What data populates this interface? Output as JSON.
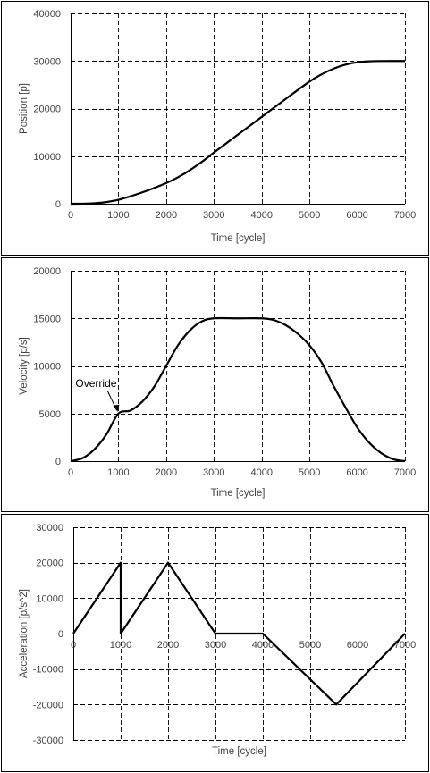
{
  "chart_data": [
    {
      "type": "line",
      "title": "",
      "xlabel": "Time [cycle]",
      "ylabel": "Position [p]",
      "xlim": [
        0,
        7000
      ],
      "ylim": [
        0,
        40000
      ],
      "x_ticks": [
        0,
        1000,
        2000,
        3000,
        4000,
        5000,
        6000,
        7000
      ],
      "y_ticks": [
        0,
        10000,
        20000,
        30000,
        40000
      ],
      "grid": true,
      "legend": "none",
      "series": [
        {
          "color": "#000000",
          "x": [
            0,
            250,
            500,
            750,
            1000,
            1250,
            1500,
            1750,
            2000,
            2250,
            2500,
            2750,
            3000,
            3500,
            4000,
            4500,
            5000,
            5250,
            5500,
            5750,
            6000,
            6250,
            6500,
            6750,
            7000
          ],
          "values": [
            0,
            13,
            104,
            352,
            833,
            1562,
            2396,
            3311,
            4333,
            5573,
            7083,
            8828,
            10750,
            14500,
            18250,
            22000,
            25667,
            27167,
            28365,
            29219,
            29729,
            29932,
            29990,
            30000,
            30000
          ]
        }
      ]
    },
    {
      "type": "line",
      "title": "",
      "xlabel": "Time [cycle]",
      "ylabel": "Velocity [p/s]",
      "xlim": [
        0,
        7000
      ],
      "ylim": [
        0,
        20000
      ],
      "x_ticks": [
        0,
        1000,
        2000,
        3000,
        4000,
        5000,
        6000,
        7000
      ],
      "y_ticks": [
        0,
        5000,
        10000,
        15000,
        20000
      ],
      "grid": true,
      "legend": "none",
      "annotations": [
        {
          "text": "Override",
          "x": 1000,
          "y": 5000
        }
      ],
      "series": [
        {
          "color": "#000000",
          "x": [
            0,
            250,
            500,
            750,
            1000,
            1250,
            1500,
            1750,
            2000,
            2250,
            2500,
            2750,
            3000,
            3500,
            4000,
            4250,
            4500,
            4750,
            5000,
            5250,
            5500,
            5750,
            6000,
            6250,
            6500,
            6750,
            7000
          ],
          "values": [
            0,
            313,
            1250,
            2813,
            5000,
            5313,
            6250,
            7813,
            10000,
            12188,
            13750,
            14688,
            15000,
            15000,
            15000,
            14824,
            14292,
            13408,
            12168,
            10406,
            7959,
            5689,
            3550,
            1945,
            853,
            209,
            0
          ]
        }
      ]
    },
    {
      "type": "line",
      "title": "",
      "xlabel": "Time [cycle]",
      "ylabel": "Acceleration [p/s^2]",
      "xlim": [
        0,
        7000
      ],
      "ylim": [
        -30000,
        30000
      ],
      "x_ticks": [
        0,
        1000,
        2000,
        3000,
        4000,
        5000,
        6000,
        7000
      ],
      "y_ticks": [
        -30000,
        -20000,
        -10000,
        0,
        10000,
        20000,
        30000
      ],
      "grid": true,
      "legend": "none",
      "series": [
        {
          "color": "#000000",
          "x": [
            0,
            1000,
            1000,
            2000,
            3000,
            4000,
            5550,
            7000
          ],
          "values": [
            0,
            20000,
            0,
            20000,
            0,
            0,
            -20000,
            0
          ]
        }
      ]
    }
  ]
}
